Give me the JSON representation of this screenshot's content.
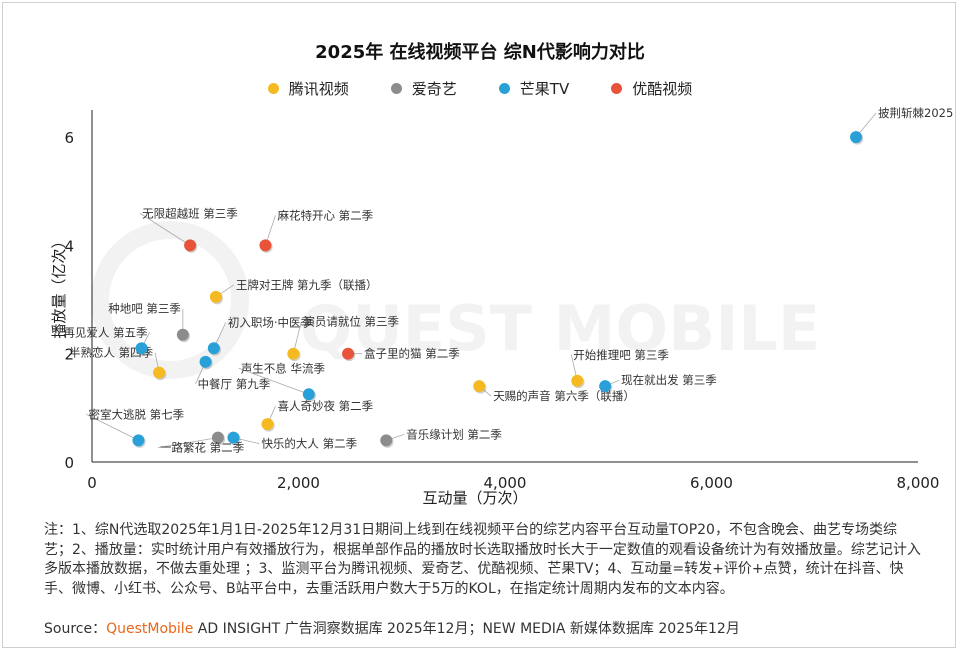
{
  "chart_data": {
    "type": "scatter",
    "title": "2025年 在线视频平台 综N代影响力对比",
    "xlabel": "互动量（万次）",
    "ylabel": "播放量（亿次）",
    "xlim": [
      0,
      8000
    ],
    "ylim": [
      0,
      6.5
    ],
    "xticks": [
      0,
      2000,
      4000,
      6000,
      8000
    ],
    "xtick_labels": [
      "0",
      "2,000",
      "4,000",
      "6,000",
      "8,000"
    ],
    "yticks": [
      0,
      2,
      4,
      6
    ],
    "ytick_labels": [
      "0",
      "2",
      "4",
      "6"
    ],
    "grid": false,
    "legend_position": "top-center",
    "watermark": "QUEST MOBILE",
    "series": [
      {
        "name": "腾讯视频",
        "color": "#f5b921",
        "points": [
          {
            "x": 1200,
            "y": 3.05,
            "label": "王牌对王牌 第九季（联播）"
          },
          {
            "x": 650,
            "y": 1.65,
            "label": "半熟恋人 第四季"
          },
          {
            "x": 1950,
            "y": 2.0,
            "label": "演员请就位 第三季"
          },
          {
            "x": 1700,
            "y": 0.7,
            "label": "喜人奇妙夜 第二季"
          },
          {
            "x": 3750,
            "y": 1.4,
            "label": "天赐的声音 第六季（联播）"
          },
          {
            "x": 4700,
            "y": 1.5,
            "label": "开始推理吧 第三季"
          }
        ]
      },
      {
        "name": "爱奇艺",
        "color": "#8c8c8c",
        "points": [
          {
            "x": 880,
            "y": 2.35,
            "label": "种地吧 第三季"
          },
          {
            "x": 1220,
            "y": 0.45,
            "label": "一路繁花 第二季"
          },
          {
            "x": 2850,
            "y": 0.4,
            "label": "音乐缘计划 第二季"
          }
        ]
      },
      {
        "name": "芒果TV",
        "color": "#2aa0d9",
        "points": [
          {
            "x": 7400,
            "y": 6.0,
            "label": "披荆斩棘2025"
          },
          {
            "x": 480,
            "y": 2.1,
            "label": "再见爱人 第五季"
          },
          {
            "x": 1180,
            "y": 2.1,
            "label": "初入职场·中医季"
          },
          {
            "x": 1100,
            "y": 1.85,
            "label": "中餐厅 第九季"
          },
          {
            "x": 2100,
            "y": 1.25,
            "label": "声生不息 华流季"
          },
          {
            "x": 450,
            "y": 0.4,
            "label": "密室大逃脱 第七季"
          },
          {
            "x": 1370,
            "y": 0.45,
            "label": "快乐的大人 第二季"
          },
          {
            "x": 4970,
            "y": 1.4,
            "label": "现在就出发 第三季"
          }
        ]
      },
      {
        "name": "优酷视频",
        "color": "#e8533a",
        "points": [
          {
            "x": 950,
            "y": 4.0,
            "label": "无限超越班 第三季"
          },
          {
            "x": 1680,
            "y": 4.0,
            "label": "麻花特开心 第二季"
          },
          {
            "x": 2480,
            "y": 2.0,
            "label": "盒子里的猫 第二季"
          }
        ]
      }
    ]
  },
  "notes": [
    "注：1、综N代选取2025年1月1日-2025年12月31日期间上线到在线视频平台的综艺内容平台互动量TOP20，不包含晚会、曲艺专场类综艺；2、播放量：实时统计用户有效播放行为，根据单部作品的播放时长选取播放时长大于一定数值的观看设备统计为有效播放量。综艺记计入多版本播放数据，不做去重处理 ；3、监测平台为腾讯视频、爱奇艺、优酷视频、芒果TV；4、互动量=转发+评价+点赞，统计在抖音、快手、微博、小红书、公众号、B站平台中，去重活跃用户数大于5万的KOL，在指定统计周期内发布的文本内容。"
  ],
  "source": {
    "prefix": "Source：",
    "brand": "QuestMobile",
    "rest": " AD INSIGHT 广告洞察数据库 2025年12月；NEW MEDIA 新媒体数据库 2025年12月"
  }
}
